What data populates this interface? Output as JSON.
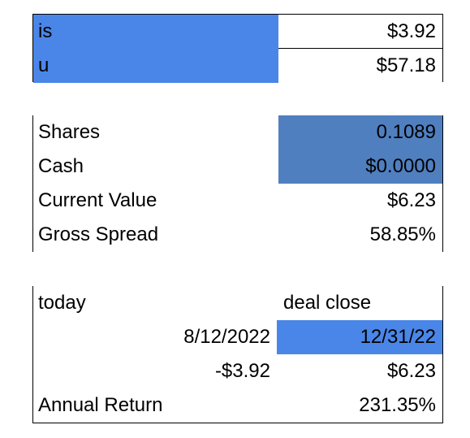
{
  "table1": {
    "rows": [
      [
        "is",
        "$3.92"
      ],
      [
        "u",
        "$57.18"
      ],
      [
        "Shares",
        "0.1089"
      ],
      [
        "Cash",
        "$0.0000"
      ],
      [
        "Current Value",
        "$6.23"
      ],
      [
        "Gross Spread",
        "58.85%"
      ]
    ]
  },
  "table2": {
    "rows": [
      [
        "today",
        "deal close"
      ],
      [
        "8/12/2022",
        "12/31/22"
      ],
      [
        "-$3.92",
        "$6.23"
      ],
      [
        "Annual Return",
        "231.35%"
      ]
    ]
  }
}
